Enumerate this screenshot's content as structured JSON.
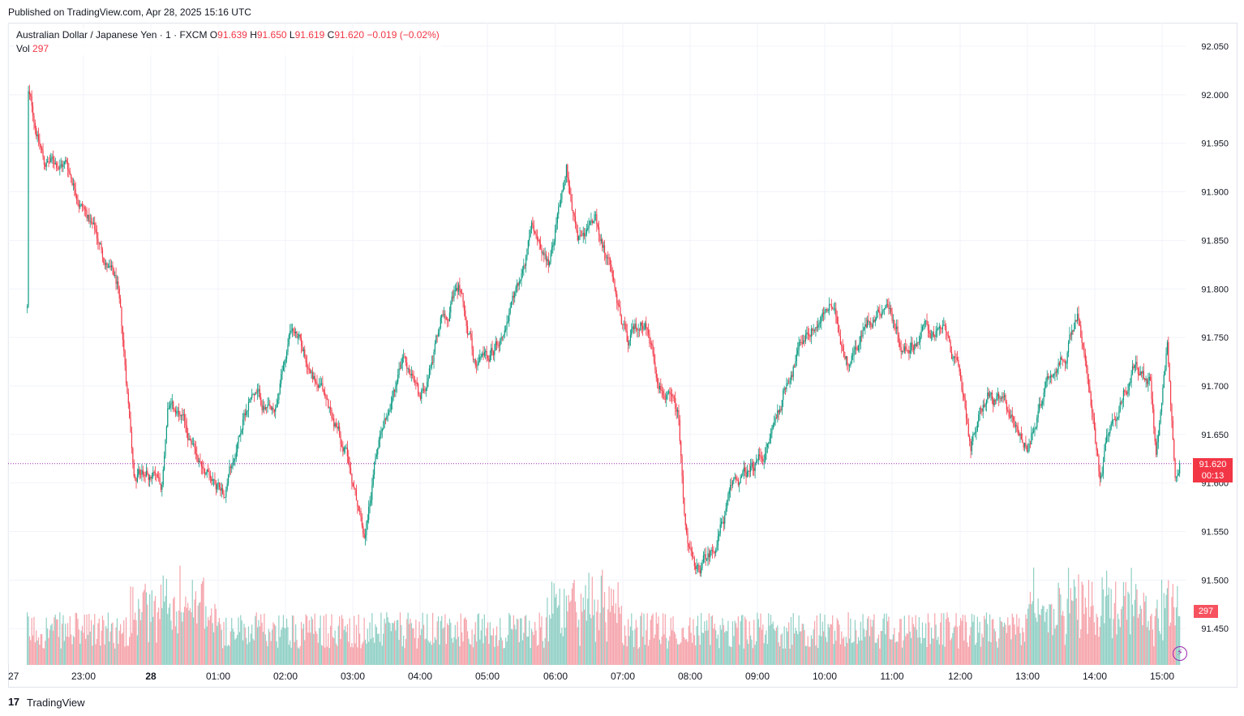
{
  "header": {
    "published": "Published on TradingView.com, Apr 28, 2025 15:16 UTC"
  },
  "legend": {
    "symbol": "Australian Dollar / Japanese Yen · 1 · FXCM",
    "open_label": "O",
    "open": "91.639",
    "high_label": "H",
    "high": "91.650",
    "low_label": "L",
    "low": "91.619",
    "close_label": "C",
    "close": "91.620",
    "change": "−0.019 (−0.02%)",
    "vol_label": "Vol",
    "vol": "297"
  },
  "badges": {
    "price": "91.620",
    "countdown": "00:13",
    "volume": "297"
  },
  "footer": {
    "logo_mark": "17",
    "brand": "TradingView"
  },
  "colors": {
    "up": "#089981",
    "down": "#f23645",
    "up_volume": "#8fcfc4",
    "down_volume": "#f5a3aa",
    "grid": "#f0f3fa",
    "price_line": "#9c27b0"
  },
  "chart_data": {
    "type": "candlestick",
    "title": "Australian Dollar / Japanese Yen · 1 · FXCM",
    "xlabel": "",
    "ylabel": "",
    "ylim": [
      91.41,
      92.09
    ],
    "grid": true,
    "price_ticks": [
      "92.050",
      "92.000",
      "91.950",
      "91.900",
      "91.850",
      "91.800",
      "91.750",
      "91.700",
      "91.650",
      "91.600",
      "91.550",
      "91.500",
      "91.450"
    ],
    "time_ticks": [
      "27",
      "23:00",
      "28",
      "01:00",
      "02:00",
      "03:00",
      "04:00",
      "05:00",
      "06:00",
      "07:00",
      "08:00",
      "09:00",
      "10:00",
      "11:00",
      "12:00",
      "13:00",
      "14:00",
      "15:00"
    ],
    "current_price": 91.62,
    "path_keypoints": [
      {
        "time": "22:10",
        "price": 91.78
      },
      {
        "time": "22:11",
        "price": 92.0
      },
      {
        "time": "22:25",
        "price": 91.93
      },
      {
        "time": "22:45",
        "price": 91.93
      },
      {
        "time": "23:30",
        "price": 91.8
      },
      {
        "time": "23:45",
        "price": 91.62
      },
      {
        "time": "00:10",
        "price": 91.6
      },
      {
        "time": "00:15",
        "price": 91.68
      },
      {
        "time": "00:45",
        "price": 91.62
      },
      {
        "time": "01:05",
        "price": 91.6
      },
      {
        "time": "01:30",
        "price": 91.7
      },
      {
        "time": "01:50",
        "price": 91.66
      },
      {
        "time": "02:05",
        "price": 91.76
      },
      {
        "time": "02:30",
        "price": 91.7
      },
      {
        "time": "02:55",
        "price": 91.63
      },
      {
        "time": "03:10",
        "price": 91.55
      },
      {
        "time": "03:25",
        "price": 91.66
      },
      {
        "time": "03:45",
        "price": 91.73
      },
      {
        "time": "04:00",
        "price": 91.68
      },
      {
        "time": "04:20",
        "price": 91.78
      },
      {
        "time": "04:35",
        "price": 91.8
      },
      {
        "time": "04:50",
        "price": 91.72
      },
      {
        "time": "05:05",
        "price": 91.74
      },
      {
        "time": "05:25",
        "price": 91.79
      },
      {
        "time": "05:40",
        "price": 91.86
      },
      {
        "time": "05:55",
        "price": 91.83
      },
      {
        "time": "06:10",
        "price": 91.93
      },
      {
        "time": "06:20",
        "price": 91.85
      },
      {
        "time": "06:35",
        "price": 91.87
      },
      {
        "time": "06:50",
        "price": 91.82
      },
      {
        "time": "07:05",
        "price": 91.74
      },
      {
        "time": "07:20",
        "price": 91.77
      },
      {
        "time": "07:30",
        "price": 91.72
      },
      {
        "time": "07:50",
        "price": 91.66
      },
      {
        "time": "07:55",
        "price": 91.56
      },
      {
        "time": "08:05",
        "price": 91.5
      },
      {
        "time": "08:20",
        "price": 91.53
      },
      {
        "time": "08:40",
        "price": 91.6
      },
      {
        "time": "08:55",
        "price": 91.61
      },
      {
        "time": "09:10",
        "price": 91.64
      },
      {
        "time": "09:30",
        "price": 91.72
      },
      {
        "time": "09:45",
        "price": 91.76
      },
      {
        "time": "10:05",
        "price": 91.78
      },
      {
        "time": "10:20",
        "price": 91.73
      },
      {
        "time": "10:40",
        "price": 91.77
      },
      {
        "time": "10:55",
        "price": 91.79
      },
      {
        "time": "11:10",
        "price": 91.74
      },
      {
        "time": "11:30",
        "price": 91.76
      },
      {
        "time": "11:50",
        "price": 91.75
      },
      {
        "time": "12:05",
        "price": 91.68
      },
      {
        "time": "12:10",
        "price": 91.64
      },
      {
        "time": "12:25",
        "price": 91.69
      },
      {
        "time": "12:45",
        "price": 91.67
      },
      {
        "time": "13:00",
        "price": 91.64
      },
      {
        "time": "13:15",
        "price": 91.7
      },
      {
        "time": "13:35",
        "price": 91.74
      },
      {
        "time": "13:45",
        "price": 91.78
      },
      {
        "time": "13:55",
        "price": 91.7
      },
      {
        "time": "14:05",
        "price": 91.6
      },
      {
        "time": "14:15",
        "price": 91.67
      },
      {
        "time": "14:35",
        "price": 91.72
      },
      {
        "time": "14:50",
        "price": 91.7
      },
      {
        "time": "14:55",
        "price": 91.63
      },
      {
        "time": "15:05",
        "price": 91.74
      },
      {
        "time": "15:12",
        "price": 91.59
      },
      {
        "time": "15:16",
        "price": 91.62
      }
    ]
  }
}
